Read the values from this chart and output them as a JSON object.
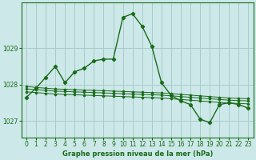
{
  "background_color": "#cce8e8",
  "grid_color": "#aacccc",
  "line_color": "#1a6b1a",
  "xlabel": "Graphe pression niveau de la mer (hPa)",
  "xlim": [
    -0.5,
    23.5
  ],
  "ylim": [
    1026.55,
    1030.25
  ],
  "yticks": [
    1027,
    1028,
    1029
  ],
  "xticks": [
    0,
    1,
    2,
    3,
    4,
    5,
    6,
    7,
    8,
    9,
    10,
    11,
    12,
    13,
    14,
    15,
    16,
    17,
    18,
    19,
    20,
    21,
    22,
    23
  ],
  "series": [
    {
      "x": [
        0,
        1,
        2,
        3,
        4,
        5,
        6,
        7,
        8,
        9,
        10,
        11,
        12,
        13,
        14,
        15,
        16,
        17,
        18,
        19,
        20,
        21,
        22,
        23
      ],
      "y": [
        1027.65,
        1027.9,
        1028.2,
        1028.5,
        1028.05,
        1028.35,
        1028.45,
        1028.65,
        1028.7,
        1028.7,
        1029.85,
        1029.95,
        1029.6,
        1029.05,
        1028.05,
        1027.7,
        1027.55,
        1027.45,
        1027.05,
        1026.95,
        1027.45,
        1027.5,
        1027.45,
        1027.35
      ]
    },
    {
      "x": [
        0,
        1,
        2,
        3,
        4,
        5,
        6,
        7,
        8,
        9,
        10,
        11,
        12,
        13,
        14,
        15,
        16,
        17,
        18,
        19,
        20,
        21,
        22,
        23
      ],
      "y": [
        1027.95,
        1027.92,
        1027.9,
        1027.88,
        1027.87,
        1027.86,
        1027.85,
        1027.84,
        1027.83,
        1027.82,
        1027.81,
        1027.8,
        1027.79,
        1027.78,
        1027.77,
        1027.75,
        1027.73,
        1027.71,
        1027.69,
        1027.67,
        1027.65,
        1027.63,
        1027.62,
        1027.61
      ]
    },
    {
      "x": [
        0,
        1,
        2,
        3,
        4,
        5,
        6,
        7,
        8,
        9,
        10,
        11,
        12,
        13,
        14,
        15,
        16,
        17,
        18,
        19,
        20,
        21,
        22,
        23
      ],
      "y": [
        1027.88,
        1027.86,
        1027.84,
        1027.82,
        1027.81,
        1027.8,
        1027.79,
        1027.78,
        1027.77,
        1027.76,
        1027.75,
        1027.74,
        1027.73,
        1027.72,
        1027.71,
        1027.69,
        1027.67,
        1027.65,
        1027.63,
        1027.61,
        1027.59,
        1027.57,
        1027.56,
        1027.55
      ]
    },
    {
      "x": [
        0,
        1,
        2,
        3,
        4,
        5,
        6,
        7,
        8,
        9,
        10,
        11,
        12,
        13,
        14,
        15,
        16,
        17,
        18,
        19,
        20,
        21,
        22,
        23
      ],
      "y": [
        1027.8,
        1027.78,
        1027.76,
        1027.74,
        1027.73,
        1027.72,
        1027.71,
        1027.7,
        1027.69,
        1027.68,
        1027.67,
        1027.66,
        1027.65,
        1027.64,
        1027.63,
        1027.61,
        1027.59,
        1027.57,
        1027.55,
        1027.53,
        1027.51,
        1027.49,
        1027.48,
        1027.47
      ]
    }
  ]
}
